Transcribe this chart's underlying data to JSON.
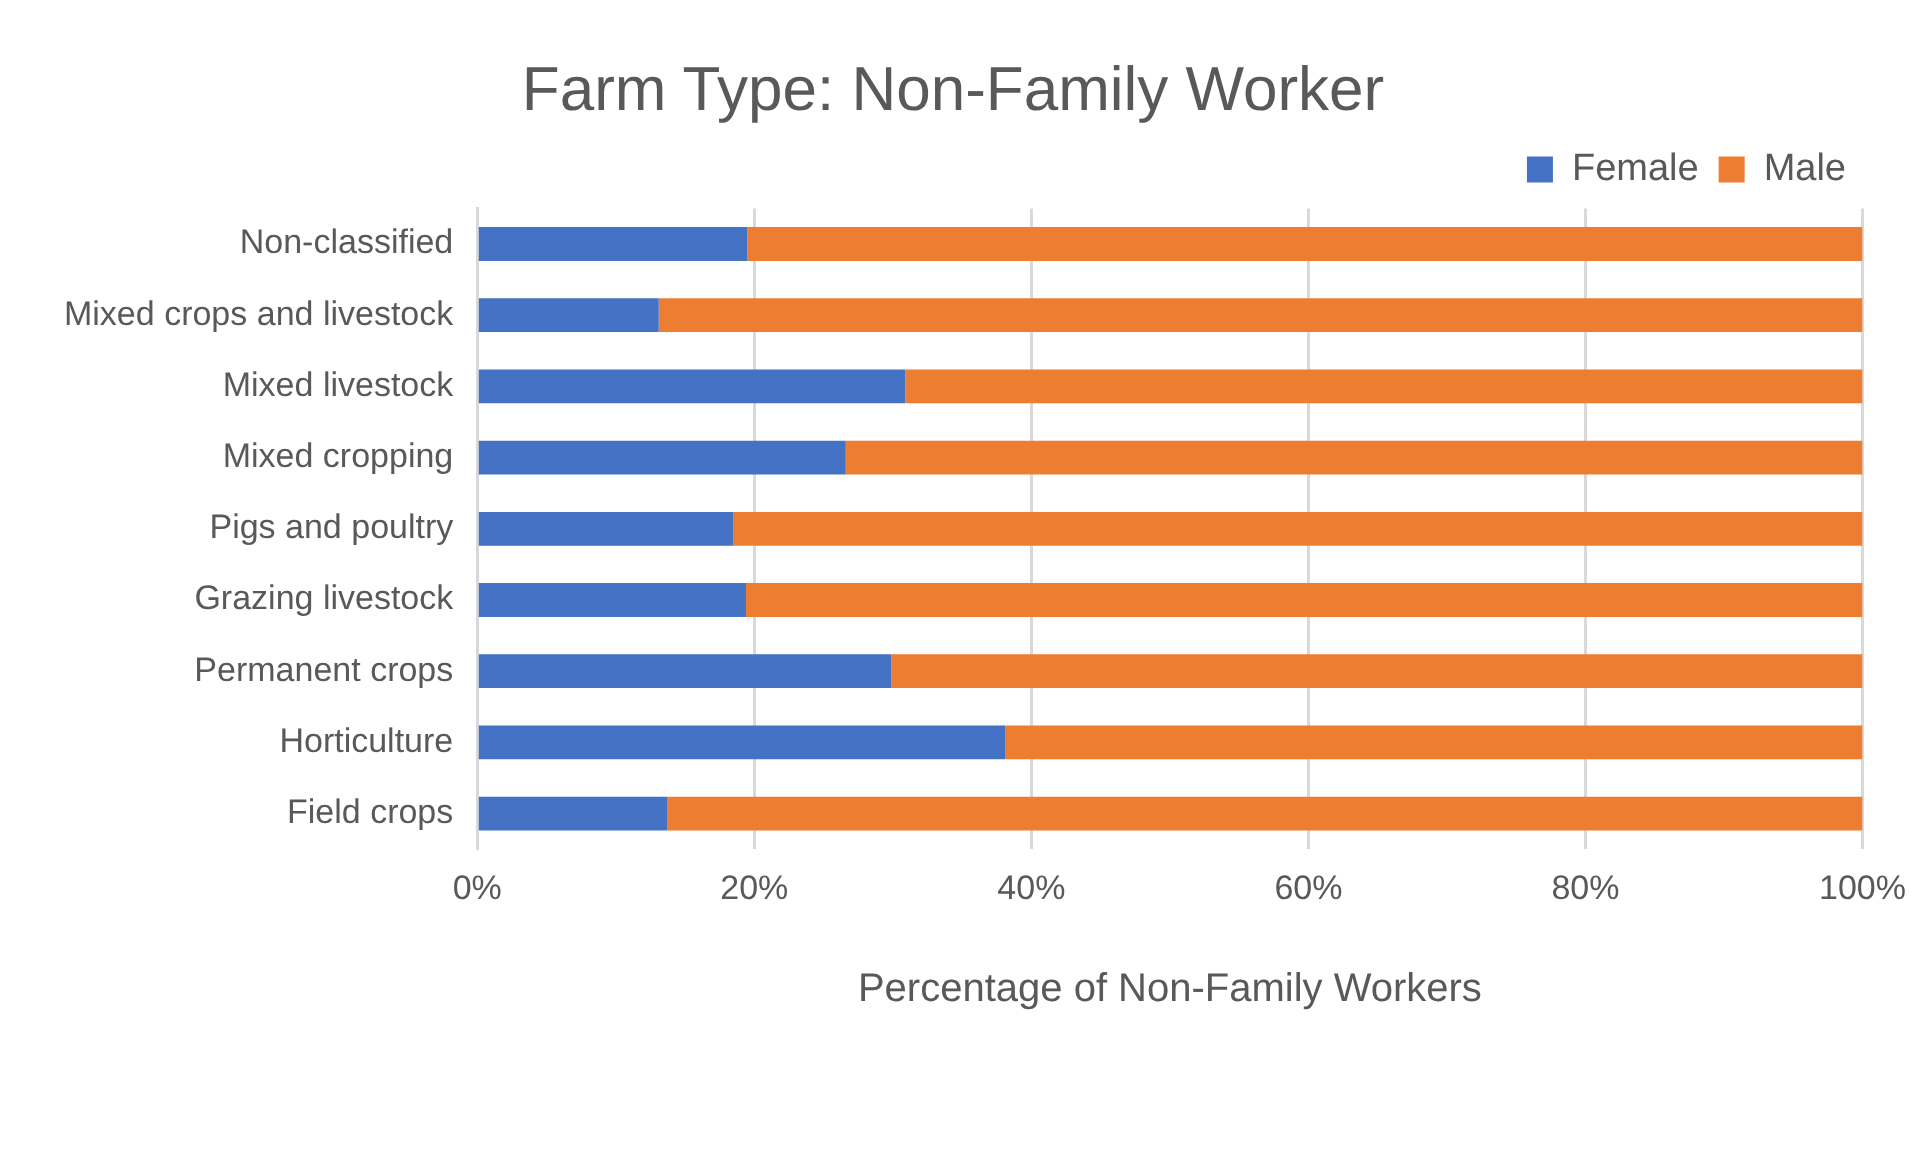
{
  "chart_data": {
    "type": "bar",
    "title": "Farm Type: Non-Family Worker",
    "xlabel": "Percentage of Non-Family Workers",
    "orientation": "horizontal",
    "stacked": true,
    "categories": [
      "Non-classified",
      "Mixed crops and livestock",
      "Mixed livestock",
      "Mixed cropping",
      "Pigs and poultry",
      "Grazing livestock",
      "Permanent crops",
      "Horticulture",
      "Field crops"
    ],
    "series": [
      {
        "name": "Female",
        "color": "#4472c4",
        "values": [
          19.5,
          13.1,
          30.9,
          26.6,
          18.5,
          19.4,
          29.9,
          38.1,
          13.7
        ]
      },
      {
        "name": "Male",
        "color": "#ed7d31",
        "values": [
          80.5,
          86.9,
          69.1,
          73.4,
          81.5,
          80.6,
          70.1,
          61.9,
          86.3
        ]
      }
    ],
    "xlim": [
      0,
      100
    ],
    "xticks": [
      {
        "value": 0,
        "label": "0%"
      },
      {
        "value": 20,
        "label": "20%"
      },
      {
        "value": 40,
        "label": "40%"
      },
      {
        "value": 60,
        "label": "60%"
      },
      {
        "value": 80,
        "label": "80%"
      },
      {
        "value": 100,
        "label": "100%"
      }
    ],
    "grid": "x",
    "legend": "top right"
  }
}
